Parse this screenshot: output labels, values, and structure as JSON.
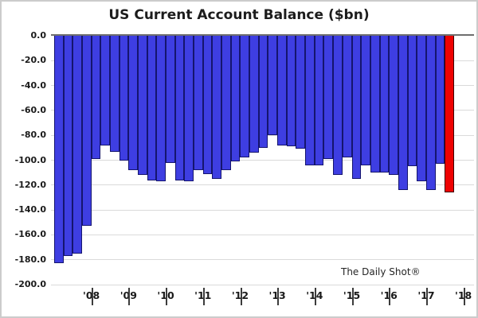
{
  "title": "US Current Account Balance ($bn)",
  "watermark": "The Daily Shot®",
  "chart_data": {
    "type": "bar",
    "title": "US Current Account Balance ($bn)",
    "xlabel": "",
    "ylabel": "",
    "unit": "$bn",
    "ylim": [
      -200,
      0
    ],
    "ytick_step": 20,
    "ytick_labels": [
      "0.0",
      "-20.0",
      "-40.0",
      "-60.0",
      "-80.0",
      "-100.0",
      "-120.0",
      "-140.0",
      "-160.0",
      "-180.0",
      "-200.0"
    ],
    "year_labels": [
      "'08",
      "'09",
      "'10",
      "'11",
      "'12",
      "'13",
      "'14",
      "'15",
      "'16",
      "'17",
      "'18"
    ],
    "grid": "horizontal",
    "legend": "none",
    "annotation": "The Daily Shot®",
    "bar_color": "#3e3ee2",
    "bar_border_color": "#15156e",
    "highlight_color": "#ee0202",
    "highlight_border_color": "#3d0000",
    "highlight_index": 42,
    "categories": [
      "2008 Q1",
      "2008 Q2",
      "2008 Q3",
      "2008 Q4",
      "2009 Q1",
      "2009 Q2",
      "2009 Q3",
      "2009 Q4",
      "2010 Q1",
      "2010 Q2",
      "2010 Q3",
      "2010 Q4",
      "2011 Q1",
      "2011 Q2",
      "2011 Q3",
      "2011 Q4",
      "2012 Q1",
      "2012 Q2",
      "2012 Q3",
      "2012 Q4",
      "2013 Q1",
      "2013 Q2",
      "2013 Q3",
      "2013 Q4",
      "2014 Q1",
      "2014 Q2",
      "2014 Q3",
      "2014 Q4",
      "2015 Q1",
      "2015 Q2",
      "2015 Q3",
      "2015 Q4",
      "2016 Q1",
      "2016 Q2",
      "2016 Q3",
      "2016 Q4",
      "2017 Q1",
      "2017 Q2",
      "2017 Q3",
      "2017 Q4",
      "2018 Q1",
      "2018 Q2",
      "2018 Q3"
    ],
    "values": [
      -183,
      -177,
      -175,
      -153,
      -99,
      -88,
      -93,
      -100,
      -108,
      -112,
      -116,
      -117,
      -102,
      -116,
      -117,
      -108,
      -111,
      -115,
      -108,
      -101,
      -98,
      -94,
      -90,
      -80,
      -88,
      -89,
      -91,
      -104,
      -104,
      -99,
      -112,
      -98,
      -115,
      -104,
      -110,
      -110,
      -112,
      -124,
      -105,
      -117,
      -124,
      -103,
      -126
    ]
  }
}
